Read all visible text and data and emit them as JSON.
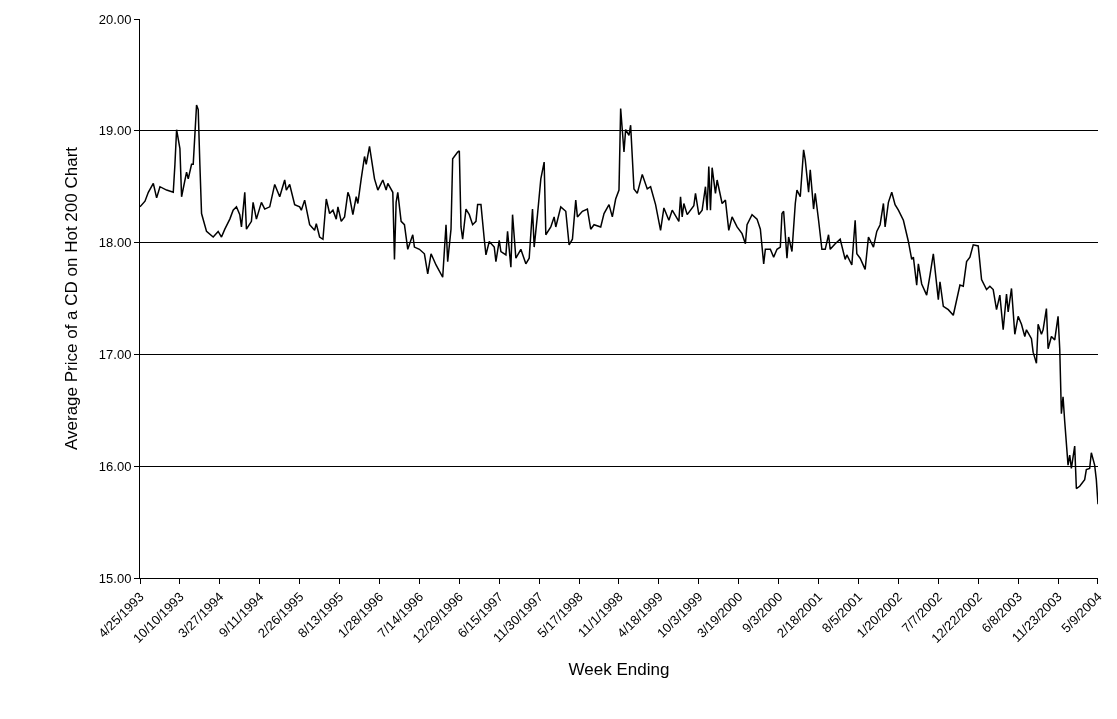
{
  "chart_data": {
    "type": "line",
    "xlabel": "Week Ending",
    "ylabel": "Average Price of a CD on Hot 200 Chart",
    "x": [
      "1993-04-25",
      "1993-05-16",
      "1993-05-30",
      "1993-06-20",
      "1993-07-04",
      "1993-07-18",
      "1993-08-15",
      "1993-09-12",
      "1993-09-19",
      "1993-09-26",
      "1993-10-10",
      "1993-10-17",
      "1993-11-07",
      "1993-11-14",
      "1993-11-28",
      "1993-12-05",
      "1993-12-19",
      "1993-12-26",
      "1994-01-02",
      "1994-01-09",
      "1994-01-30",
      "1994-02-27",
      "1994-03-20",
      "1994-04-03",
      "1994-04-17",
      "1994-05-08",
      "1994-05-22",
      "1994-06-05",
      "1994-06-19",
      "1994-06-26",
      "1994-07-10",
      "1994-07-17",
      "1994-08-07",
      "1994-08-14",
      "1994-08-28",
      "1994-09-18",
      "1994-10-02",
      "1994-10-23",
      "1994-11-13",
      "1994-12-04",
      "1994-12-25",
      "1995-01-01",
      "1995-01-15",
      "1995-02-05",
      "1995-02-26",
      "1995-03-05",
      "1995-03-19",
      "1995-04-09",
      "1995-04-30",
      "1995-05-07",
      "1995-05-21",
      "1995-06-04",
      "1995-06-18",
      "1995-07-02",
      "1995-07-16",
      "1995-07-30",
      "1995-08-06",
      "1995-08-20",
      "1995-09-03",
      "1995-09-17",
      "1995-09-24",
      "1995-10-08",
      "1995-10-22",
      "1995-10-29",
      "1995-11-12",
      "1995-11-26",
      "1995-12-03",
      "1995-12-17",
      "1996-01-07",
      "1996-01-21",
      "1996-02-04",
      "1996-02-11",
      "1996-02-25",
      "1996-03-03",
      "1996-03-24",
      "1996-03-31",
      "1996-04-07",
      "1996-04-14",
      "1996-04-28",
      "1996-05-12",
      "1996-05-26",
      "1996-06-16",
      "1996-06-23",
      "1996-07-14",
      "1996-08-04",
      "1996-08-18",
      "1996-09-01",
      "1996-09-22",
      "1996-10-20",
      "1996-11-03",
      "1996-11-10",
      "1996-11-24",
      "1996-12-01",
      "1996-12-22",
      "1996-12-29",
      "1997-01-05",
      "1997-01-12",
      "1997-01-26",
      "1997-02-09",
      "1997-02-23",
      "1997-03-09",
      "1997-03-16",
      "1997-03-30",
      "1997-04-13",
      "1997-04-20",
      "1997-05-04",
      "1997-05-25",
      "1997-06-01",
      "1997-06-15",
      "1997-06-22",
      "1997-07-13",
      "1997-07-20",
      "1997-08-03",
      "1997-08-10",
      "1997-08-24",
      "1997-09-14",
      "1997-10-05",
      "1997-10-19",
      "1997-11-02",
      "1997-11-09",
      "1997-11-23",
      "1997-12-07",
      "1997-12-21",
      "1997-12-28",
      "1998-01-18",
      "1998-02-01",
      "1998-02-08",
      "1998-03-01",
      "1998-03-22",
      "1998-04-05",
      "1998-04-19",
      "1998-05-03",
      "1998-05-10",
      "1998-05-31",
      "1998-06-21",
      "1998-07-05",
      "1998-07-19",
      "1998-08-16",
      "1998-08-30",
      "1998-09-20",
      "1998-10-04",
      "1998-10-18",
      "1998-11-01",
      "1998-11-08",
      "1998-11-22",
      "1998-11-29",
      "1998-12-13",
      "1998-12-20",
      "1999-01-03",
      "1999-01-17",
      "1999-02-07",
      "1999-02-28",
      "1999-03-14",
      "1999-04-04",
      "1999-04-25",
      "1999-05-09",
      "1999-05-30",
      "1999-06-13",
      "1999-07-11",
      "1999-07-18",
      "1999-07-25",
      "1999-08-01",
      "1999-08-15",
      "1999-09-12",
      "1999-09-19",
      "1999-10-03",
      "1999-10-17",
      "1999-10-31",
      "1999-11-07",
      "1999-11-14",
      "1999-11-21",
      "1999-11-28",
      "1999-12-12",
      "1999-12-19",
      "2000-01-09",
      "2000-01-23",
      "2000-02-06",
      "2000-02-20",
      "2000-03-12",
      "2000-04-02",
      "2000-04-16",
      "2000-04-23",
      "2000-05-14",
      "2000-06-04",
      "2000-06-18",
      "2000-07-02",
      "2000-07-09",
      "2000-07-30",
      "2000-08-13",
      "2000-08-27",
      "2000-09-10",
      "2000-09-17",
      "2000-09-24",
      "2000-10-08",
      "2000-10-15",
      "2000-10-29",
      "2000-11-12",
      "2000-11-19",
      "2000-12-03",
      "2000-12-17",
      "2000-12-24",
      "2001-01-07",
      "2001-01-14",
      "2001-01-28",
      "2001-02-04",
      "2001-02-18",
      "2001-03-04",
      "2001-03-18",
      "2001-04-01",
      "2001-04-08",
      "2001-04-29",
      "2001-05-20",
      "2001-06-10",
      "2001-06-17",
      "2001-07-08",
      "2001-07-22",
      "2001-07-29",
      "2001-08-12",
      "2001-09-02",
      "2001-09-16",
      "2001-10-07",
      "2001-10-21",
      "2001-11-04",
      "2001-11-18",
      "2001-11-25",
      "2001-12-09",
      "2001-12-23",
      "2002-01-06",
      "2002-01-20",
      "2002-02-10",
      "2002-03-03",
      "2002-03-17",
      "2002-03-24",
      "2002-04-07",
      "2002-04-14",
      "2002-04-28",
      "2002-05-19",
      "2002-06-02",
      "2002-06-16",
      "2002-07-07",
      "2002-07-14",
      "2002-07-28",
      "2002-08-18",
      "2002-09-08",
      "2002-10-06",
      "2002-10-20",
      "2002-11-03",
      "2002-11-17",
      "2002-12-01",
      "2002-12-22",
      "2003-01-05",
      "2003-01-26",
      "2003-02-09",
      "2003-02-23",
      "2003-03-09",
      "2003-03-23",
      "2003-04-06",
      "2003-04-20",
      "2003-04-27",
      "2003-05-11",
      "2003-05-25",
      "2003-06-08",
      "2003-06-22",
      "2003-07-06",
      "2003-07-13",
      "2003-08-03",
      "2003-08-10",
      "2003-08-24",
      "2003-08-31",
      "2003-09-14",
      "2003-09-21",
      "2003-10-05",
      "2003-10-12",
      "2003-10-26",
      "2003-11-09",
      "2003-11-23",
      "2003-11-30",
      "2003-12-07",
      "2003-12-14",
      "2003-12-21",
      "2004-01-04",
      "2004-01-11",
      "2004-01-18",
      "2004-02-01",
      "2004-02-08",
      "2004-02-22",
      "2004-03-14",
      "2004-03-21",
      "2004-04-04",
      "2004-04-11",
      "2004-04-25",
      "2004-05-02",
      "2004-05-09"
    ],
    "series": [
      {
        "color": "#000000",
        "values": [
          18.32,
          18.37,
          18.45,
          18.53,
          18.4,
          18.5,
          18.47,
          18.45,
          18.7,
          19.01,
          18.84,
          18.41,
          18.63,
          18.57,
          18.7,
          18.7,
          19.23,
          19.19,
          18.7,
          18.26,
          18.1,
          18.05,
          18.1,
          18.05,
          18.12,
          18.21,
          18.29,
          18.32,
          18.25,
          18.14,
          18.45,
          18.12,
          18.19,
          18.36,
          18.21,
          18.36,
          18.3,
          18.32,
          18.52,
          18.41,
          18.56,
          18.47,
          18.52,
          18.34,
          18.32,
          18.29,
          18.38,
          18.16,
          18.11,
          18.17,
          18.05,
          18.03,
          18.39,
          18.26,
          18.29,
          18.21,
          18.32,
          18.19,
          18.23,
          18.45,
          18.41,
          18.25,
          18.41,
          18.35,
          18.57,
          18.77,
          18.7,
          18.86,
          18.57,
          18.47,
          18.53,
          18.56,
          18.47,
          18.53,
          18.45,
          17.85,
          18.36,
          18.45,
          18.19,
          18.16,
          17.94,
          18.07,
          17.96,
          17.94,
          17.9,
          17.72,
          17.9,
          17.8,
          17.69,
          18.16,
          17.83,
          18.12,
          18.75,
          18.81,
          18.82,
          18.14,
          18.03,
          18.3,
          18.25,
          18.16,
          18.19,
          18.34,
          18.34,
          18.03,
          17.89,
          18.01,
          17.96,
          17.83,
          18.02,
          17.92,
          17.89,
          18.1,
          17.78,
          18.25,
          17.86,
          17.94,
          17.81,
          17.86,
          18.3,
          17.96,
          18.25,
          18.57,
          18.72,
          18.07,
          18.14,
          18.23,
          18.14,
          18.32,
          18.28,
          17.98,
          18.03,
          18.38,
          18.23,
          18.28,
          18.3,
          18.12,
          18.16,
          18.14,
          18.26,
          18.34,
          18.23,
          18.39,
          18.47,
          19.2,
          18.81,
          19.01,
          18.96,
          19.05,
          18.48,
          18.44,
          18.61,
          18.48,
          18.5,
          18.34,
          18.11,
          18.31,
          18.2,
          18.29,
          18.19,
          18.41,
          18.23,
          18.35,
          18.25,
          18.33,
          18.44,
          18.25,
          18.29,
          18.5,
          18.29,
          18.68,
          18.29,
          18.67,
          18.44,
          18.56,
          18.35,
          18.38,
          18.11,
          18.23,
          18.14,
          18.08,
          17.99,
          18.16,
          18.25,
          18.21,
          18.12,
          17.81,
          17.94,
          17.94,
          17.87,
          17.94,
          17.96,
          18.26,
          18.28,
          17.86,
          18.05,
          17.92,
          18.35,
          18.47,
          18.41,
          18.83,
          18.74,
          18.45,
          18.65,
          18.3,
          18.44,
          18.2,
          17.94,
          17.94,
          18.07,
          17.94,
          17.99,
          18.03,
          17.85,
          17.89,
          17.8,
          18.2,
          17.9,
          17.86,
          17.76,
          18.05,
          17.96,
          18.1,
          18.16,
          18.35,
          18.14,
          18.36,
          18.45,
          18.34,
          18.29,
          18.2,
          18.01,
          17.85,
          17.87,
          17.62,
          17.81,
          17.63,
          17.53,
          17.71,
          17.9,
          17.49,
          17.65,
          17.43,
          17.4,
          17.35,
          17.62,
          17.61,
          17.83,
          17.87,
          17.98,
          17.97,
          17.67,
          17.58,
          17.61,
          17.58,
          17.4,
          17.53,
          17.22,
          17.54,
          17.38,
          17.59,
          17.18,
          17.34,
          17.27,
          17.16,
          17.22,
          17.14,
          17.02,
          16.92,
          17.27,
          17.18,
          17.22,
          17.41,
          17.05,
          17.16,
          17.13,
          17.34,
          17.05,
          16.47,
          16.62,
          16.4,
          16.01,
          16.1,
          15.98,
          16.18,
          15.8,
          15.82,
          15.88,
          15.97,
          15.98,
          16.12,
          16.01,
          15.88,
          15.66
        ]
      }
    ],
    "xlim": [
      "1993-04-25",
      "2004-05-09"
    ],
    "xticks": [
      {
        "value": "1993-04-25",
        "label": "4/25/1993"
      },
      {
        "value": "1993-10-10",
        "label": "10/10/1993"
      },
      {
        "value": "1994-03-27",
        "label": "3/27/1994"
      },
      {
        "value": "1994-09-11",
        "label": "9/11/1994"
      },
      {
        "value": "1995-02-26",
        "label": "2/26/1995"
      },
      {
        "value": "1995-08-13",
        "label": "8/13/1995"
      },
      {
        "value": "1996-01-28",
        "label": "1/28/1996"
      },
      {
        "value": "1996-07-14",
        "label": "7/14/1996"
      },
      {
        "value": "1996-12-29",
        "label": "12/29/1996"
      },
      {
        "value": "1997-06-15",
        "label": "6/15/1997"
      },
      {
        "value": "1997-11-30",
        "label": "11/30/1997"
      },
      {
        "value": "1998-05-17",
        "label": "5/17/1998"
      },
      {
        "value": "1998-11-01",
        "label": "11/1/1998"
      },
      {
        "value": "1999-04-18",
        "label": "4/18/1999"
      },
      {
        "value": "1999-10-03",
        "label": "10/3/1999"
      },
      {
        "value": "2000-03-19",
        "label": "3/19/2000"
      },
      {
        "value": "2000-09-03",
        "label": "9/3/2000"
      },
      {
        "value": "2001-02-18",
        "label": "2/18/2001"
      },
      {
        "value": "2001-08-05",
        "label": "8/5/2001"
      },
      {
        "value": "2002-01-20",
        "label": "1/20/2002"
      },
      {
        "value": "2002-07-07",
        "label": "7/7/2002"
      },
      {
        "value": "2002-12-22",
        "label": "12/22/2002"
      },
      {
        "value": "2003-06-08",
        "label": "6/8/2003"
      },
      {
        "value": "2003-11-23",
        "label": "11/23/2003"
      },
      {
        "value": "2004-05-09",
        "label": "5/9/2004"
      }
    ],
    "ylim": [
      15,
      20
    ],
    "yticks": [
      {
        "value": 15,
        "label": "15.00"
      },
      {
        "value": 16,
        "label": "16.00"
      },
      {
        "value": 17,
        "label": "17.00"
      },
      {
        "value": 18,
        "label": "18.00"
      },
      {
        "value": 19,
        "label": "19.00"
      },
      {
        "value": 20,
        "label": "20.00"
      }
    ],
    "grid": "y",
    "marker": "none",
    "line_style": "solid"
  }
}
